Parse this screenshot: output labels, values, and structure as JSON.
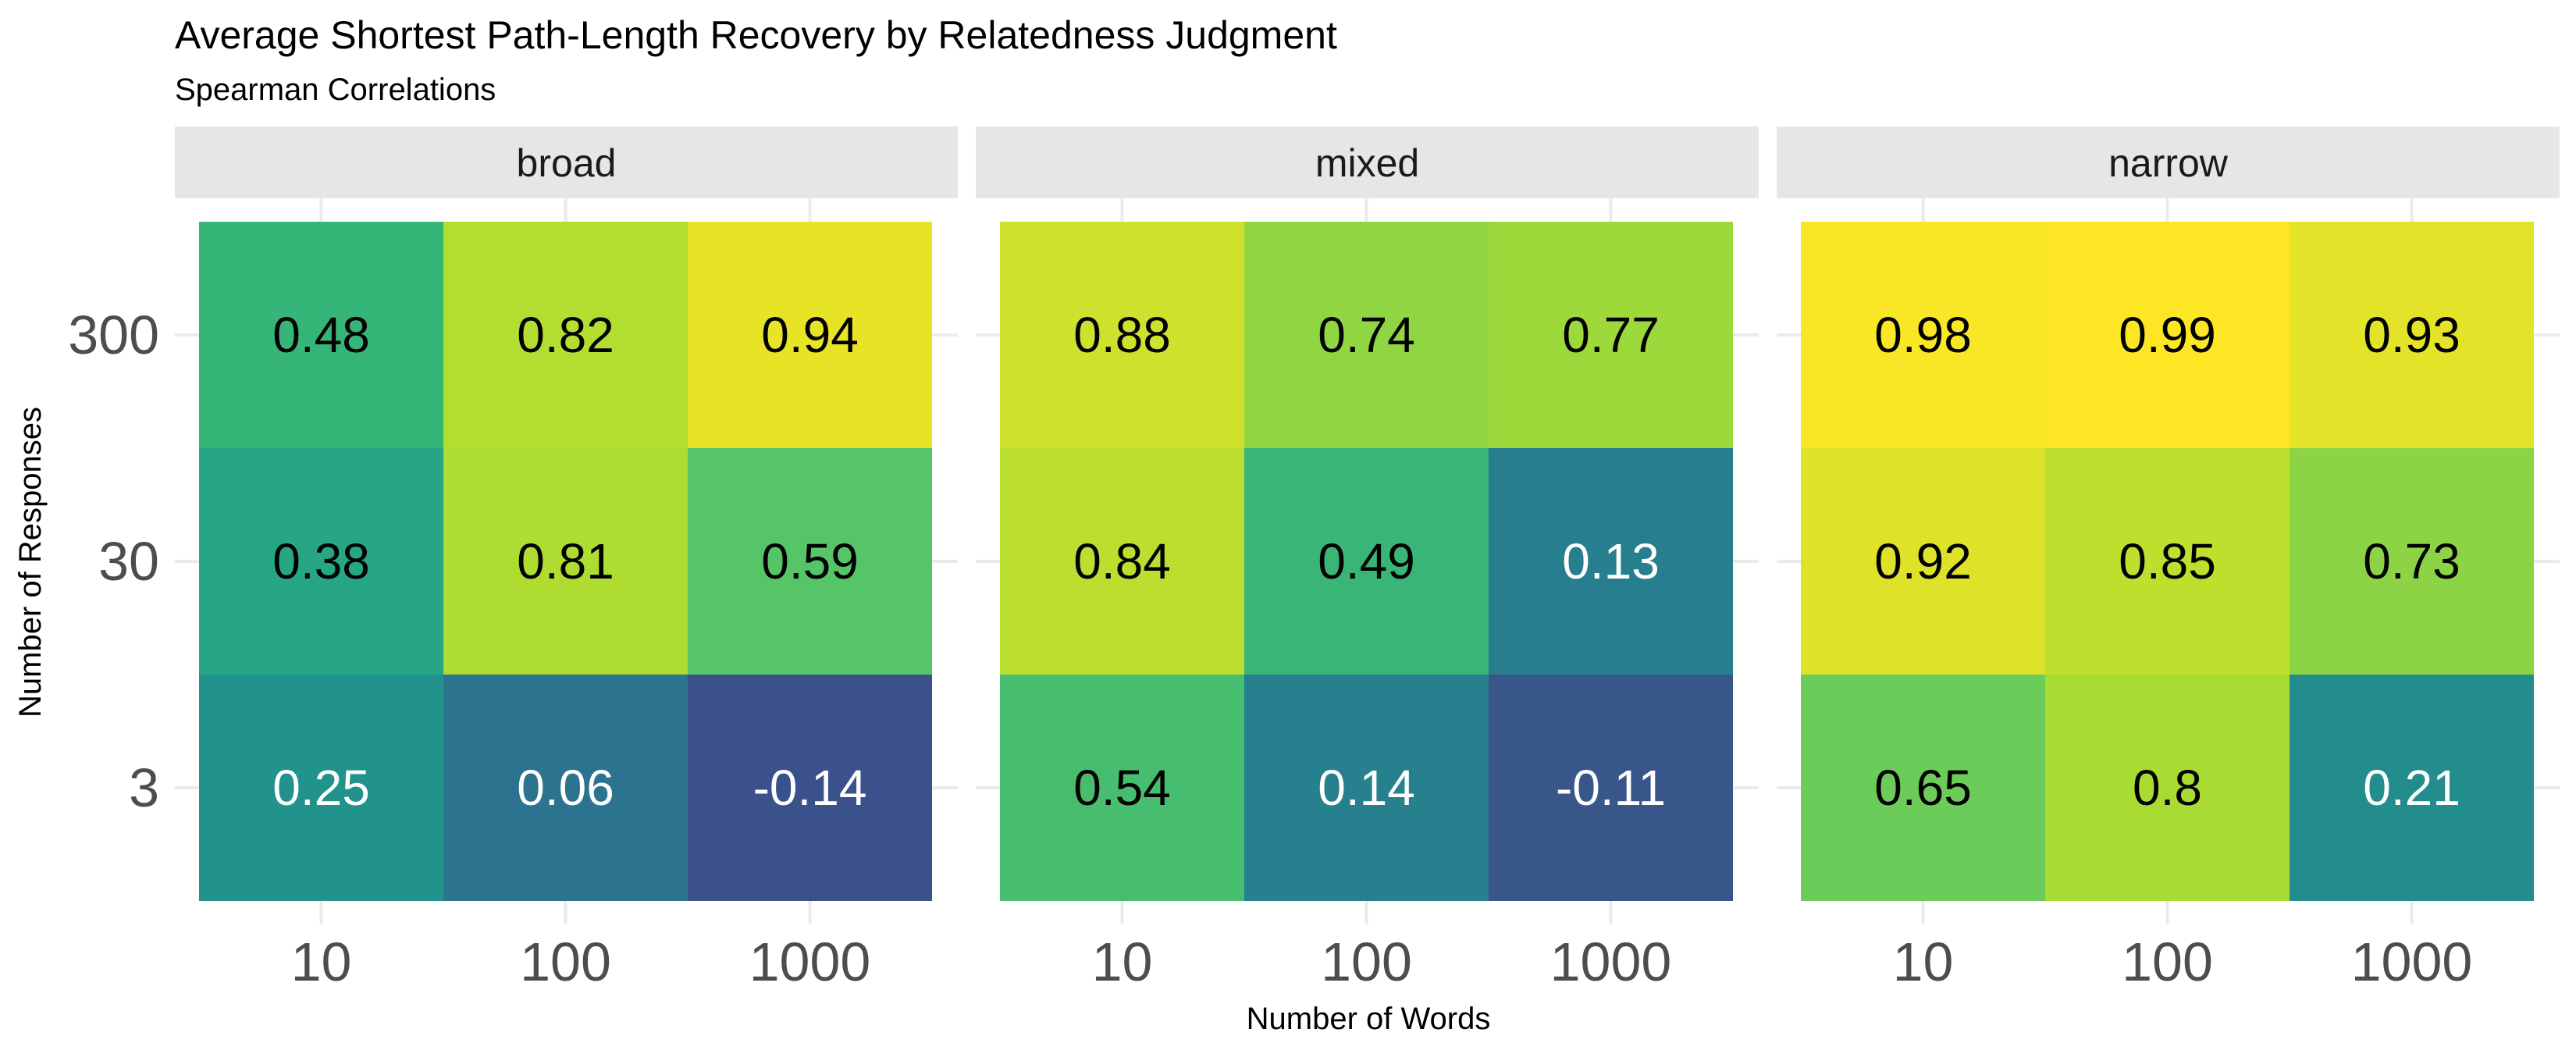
{
  "chart_data": {
    "type": "heatmap",
    "title": "Average Shortest Path-Length Recovery by Relatedness Judgment",
    "subtitle": "Spearman Correlations",
    "xlabel": "Number of Words",
    "ylabel": "Number of Responses",
    "x_categories": [
      "10",
      "100",
      "1000"
    ],
    "y_categories": [
      "3",
      "30",
      "300"
    ],
    "color_scale": "viridis",
    "color_range": [
      -0.14,
      0.99
    ],
    "grid": true,
    "legend": "none",
    "facets": [
      {
        "name": "broad",
        "rows": [
          {
            "responses": "300",
            "values": [
              0.48,
              0.82,
              0.94
            ]
          },
          {
            "responses": "30",
            "values": [
              0.38,
              0.81,
              0.59
            ]
          },
          {
            "responses": "3",
            "values": [
              0.25,
              0.06,
              -0.14
            ]
          }
        ]
      },
      {
        "name": "mixed",
        "rows": [
          {
            "responses": "300",
            "values": [
              0.88,
              0.74,
              0.77
            ]
          },
          {
            "responses": "30",
            "values": [
              0.84,
              0.49,
              0.13
            ]
          },
          {
            "responses": "3",
            "values": [
              0.54,
              0.14,
              -0.11
            ]
          }
        ]
      },
      {
        "name": "narrow",
        "rows": [
          {
            "responses": "300",
            "values": [
              0.98,
              0.99,
              0.93
            ]
          },
          {
            "responses": "30",
            "values": [
              0.92,
              0.85,
              0.73
            ]
          },
          {
            "responses": "3",
            "values": [
              0.65,
              0.8,
              0.21
            ]
          }
        ]
      }
    ]
  }
}
